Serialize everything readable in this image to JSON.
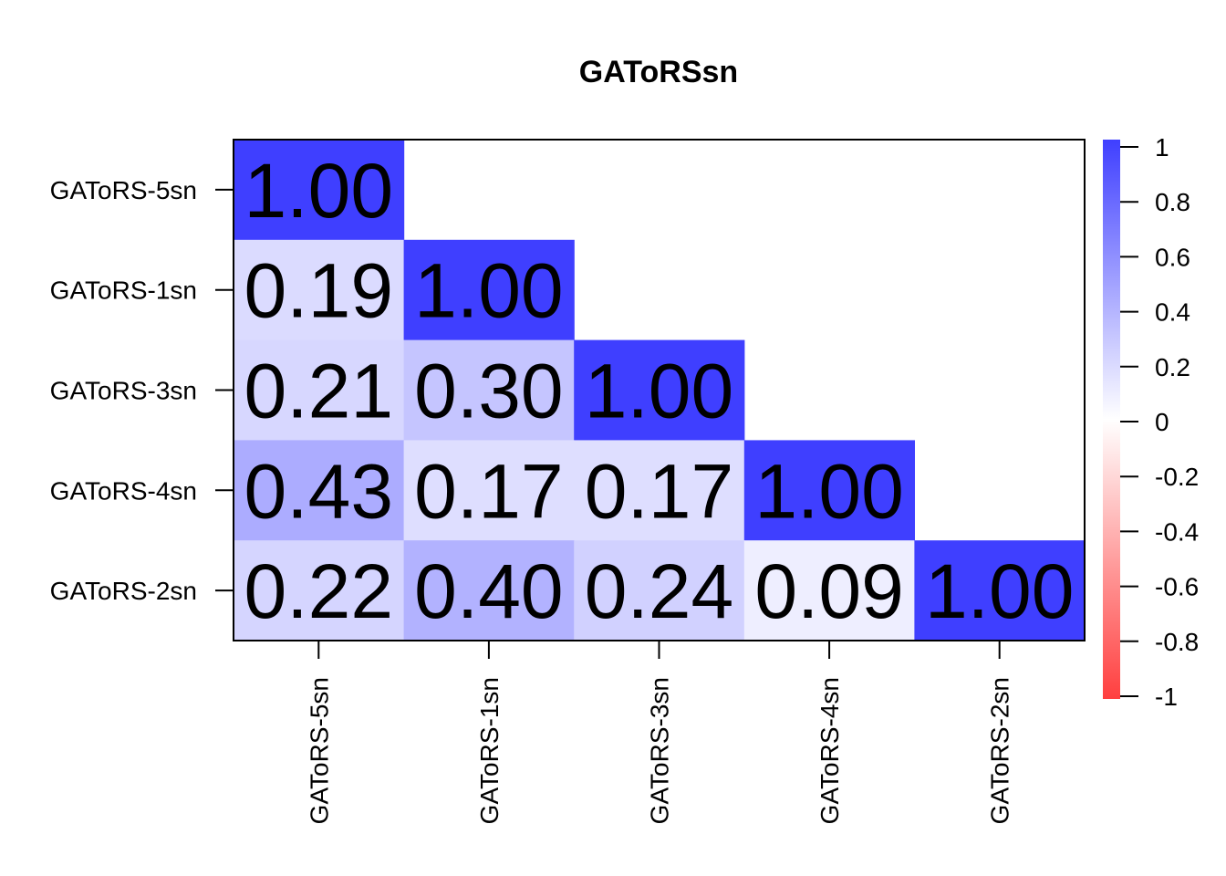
{
  "chart_data": {
    "type": "heatmap",
    "title": "GAToRSsn",
    "variables": [
      "GAToRS-5sn",
      "GAToRS-1sn",
      "GAToRS-3sn",
      "GAToRS-4sn",
      "GAToRS-2sn"
    ],
    "matrix": [
      [
        1.0,
        null,
        null,
        null,
        null
      ],
      [
        0.19,
        1.0,
        null,
        null,
        null
      ],
      [
        0.21,
        0.3,
        1.0,
        null,
        null
      ],
      [
        0.43,
        0.17,
        0.17,
        1.0,
        null
      ],
      [
        0.22,
        0.4,
        0.24,
        0.09,
        1.0
      ]
    ],
    "cell_labels": [
      [
        "1.00",
        null,
        null,
        null,
        null
      ],
      [
        "0.19",
        "1.00",
        null,
        null,
        null
      ],
      [
        "0.21",
        "0.30",
        "1.00",
        null,
        null
      ],
      [
        "0.43",
        "0.17",
        "0.17",
        "1.00",
        null
      ],
      [
        "0.22",
        "0.40",
        "0.24",
        "0.09",
        "1.00"
      ]
    ],
    "triangle": "lower",
    "colorbar": {
      "range": [
        -1,
        1
      ],
      "ticks": [
        1,
        0.8,
        0.6,
        0.4,
        0.2,
        0,
        -0.2,
        -0.4,
        -0.6,
        -0.8,
        -1
      ],
      "tick_labels": [
        "1",
        "0.8",
        "0.6",
        "0.4",
        "0.2",
        "0",
        "-0.2",
        "-0.4",
        "-0.6",
        "-0.8",
        "-1"
      ],
      "positive_color": "#3f3fff",
      "zero_color": "#ffffff",
      "negative_color": "#ff3f3f",
      "placement": "right"
    }
  }
}
